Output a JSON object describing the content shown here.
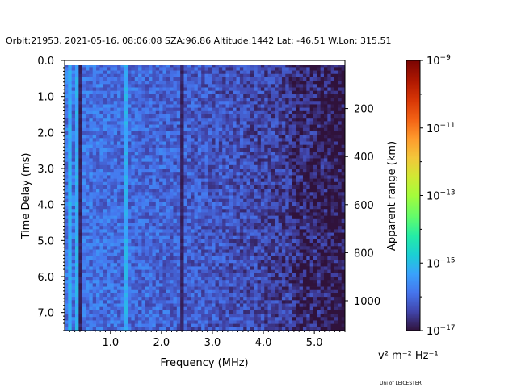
{
  "chart_data": {
    "type": "heatmap",
    "title": "Orbit:21953, 2021-05-16, 08:06:08 SZA:96.86 Altitude:1442 Lat: -46.51 W.Lon: 315.51",
    "xlabel": "Frequency (MHz)",
    "ylabel": "Time Delay (ms)",
    "y2label": "Apparent range (km)",
    "xlim": [
      0.1,
      5.6
    ],
    "ylim": [
      7.5,
      0.0
    ],
    "x_ticks": [
      1.0,
      2.0,
      3.0,
      4.0,
      5.0
    ],
    "x_tick_labels": [
      "1.0",
      "2.0",
      "3.0",
      "4.0",
      "5.0"
    ],
    "y_ticks": [
      0.0,
      1.0,
      2.0,
      3.0,
      4.0,
      5.0,
      6.0,
      7.0
    ],
    "y_tick_labels": [
      "0.0",
      "1.0",
      "2.0",
      "3.0",
      "4.0",
      "5.0",
      "6.0",
      "7.0"
    ],
    "y2_ticks_km": [
      200,
      400,
      600,
      800,
      1000
    ],
    "y2_tick_labels": [
      "200",
      "400",
      "600",
      "800",
      "1000"
    ],
    "km_per_ms": 149.9,
    "colorbar": {
      "label": "v² m⁻² Hz⁻¹",
      "scale": "log",
      "range": [
        1e-17,
        1e-09
      ],
      "ticks_exp": [
        -9,
        -11,
        -13,
        -15,
        -17
      ],
      "tick_bases": [
        "10",
        "10",
        "10",
        "10",
        "10"
      ],
      "tick_exponents": [
        "−9",
        "−11",
        "−13",
        "−15",
        "−17"
      ]
    },
    "features": {
      "strong_lines_mhz": [
        0.22,
        0.35,
        1.33
      ],
      "dark_lines_mhz": [
        0.44,
        2.37,
        2.4
      ],
      "top_row_level_exp": -15.4,
      "background_exp_low_freq": -15.9,
      "background_exp_high_freq": -16.8
    }
  },
  "footer": {
    "credit": "Uni of LEICESTER"
  },
  "colors": {
    "background": "#ffffff",
    "axis": "#000000"
  }
}
